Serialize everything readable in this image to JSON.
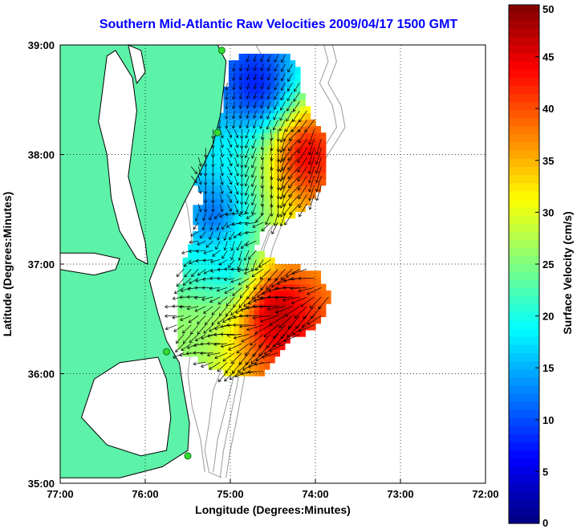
{
  "chart_data": {
    "type": "vector-field-map",
    "title": "Southern Mid-Atlantic Raw Velocities 2009/04/17 1500 GMT",
    "xlabel": "Longitude (Degrees:Minutes)",
    "ylabel": "Latitude (Degrees:Minutes)",
    "xlim": [
      -77,
      -72
    ],
    "ylim": [
      35,
      39
    ],
    "x_ticks": [
      "77:00",
      "76:00",
      "75:00",
      "74:00",
      "73:00",
      "72:00"
    ],
    "y_ticks": [
      "39:00",
      "38:00",
      "37:00",
      "36:00",
      "35:00"
    ],
    "grid": "dotted",
    "colorbar": {
      "label": "Surface Velocity (cm/s)",
      "range": [
        0,
        50
      ],
      "ticks": [
        "50",
        "45",
        "40",
        "35",
        "30",
        "25",
        "20",
        "15",
        "10",
        "5",
        "0"
      ]
    },
    "colors": {
      "land": "#5cf2a8",
      "coast": "#000000",
      "bathymetry": "#9a9a9a",
      "stations": "#33dd33",
      "title": "#0000ff"
    }
  }
}
